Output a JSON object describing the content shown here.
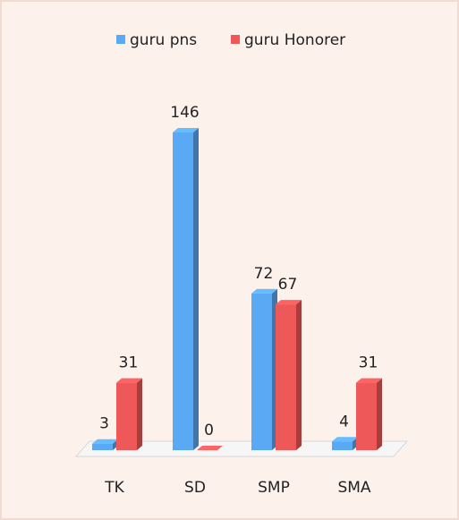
{
  "chart_data": {
    "type": "bar3d",
    "categories": [
      "TK",
      "SD",
      "SMP",
      "SMA"
    ],
    "series": [
      {
        "name": "guru pns",
        "color": "#5aa9f5",
        "values": [
          3,
          146,
          72,
          4
        ]
      },
      {
        "name": "guru Honorer",
        "color": "#ef5858",
        "values": [
          31,
          0,
          67,
          31
        ]
      }
    ],
    "legend": "top"
  }
}
